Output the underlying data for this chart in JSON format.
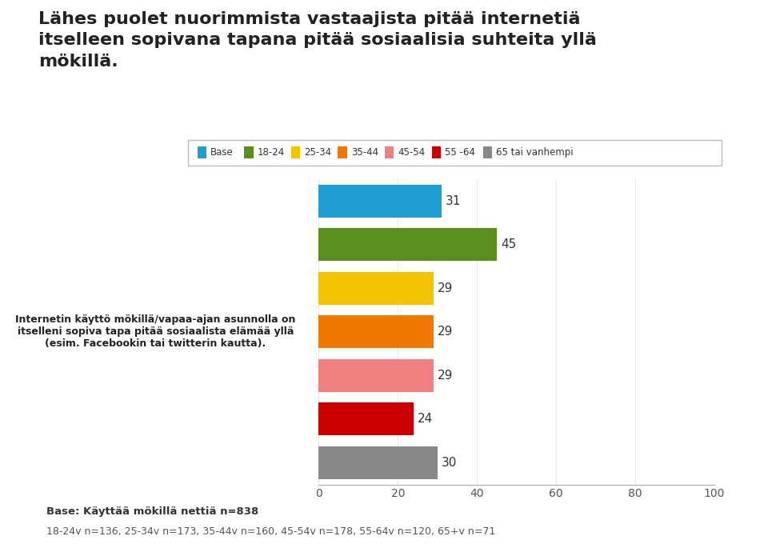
{
  "title": "Lähes puolet nuorimmista vastaajista pitää internetiä\nitselleen sopivana tapana pitää sosiaalisia suhteita yllä\nmökillä.",
  "legend_labels": [
    "Base",
    "18-24",
    "25-34",
    "35-44",
    "45-54",
    "55 -64",
    "65 tai vanhempi"
  ],
  "legend_colors": [
    "#1f9ed1",
    "#5a8f1e",
    "#f5c400",
    "#f07800",
    "#f08080",
    "#cc0000",
    "#888888"
  ],
  "categories": [
    "Base",
    "18-24",
    "25-34",
    "35-44",
    "45-54",
    "55-64",
    "65 tai vanhempi"
  ],
  "values": [
    31,
    45,
    29,
    29,
    29,
    24,
    30
  ],
  "bar_colors": [
    "#1f9ed1",
    "#5a8f1e",
    "#f5c400",
    "#f07800",
    "#f08080",
    "#cc0000",
    "#888888"
  ],
  "ylabel_text": "Internetin käyttö mökillä/vapaa-ajan asunnolla on\nitselleni sopiva tapa pitää sosiaalista elämää yllä\n(esim. Facebookin tai twitterin kautta).",
  "xlim": [
    0,
    100
  ],
  "xticks": [
    0,
    20,
    40,
    60,
    80,
    100
  ],
  "footnote1": "Base: Käyttää mökillä nettiä n=838",
  "footnote2": "18-24v n=136, 25-34v n=173, 35-44v n=160, 45-54v n=178, 55-64v n=120, 65+v n=71",
  "background_color": "#ffffff",
  "bar_height": 0.75,
  "value_fontsize": 11,
  "label_fontsize": 9,
  "title_fontsize": 16,
  "footnote_fontsize": 9.5
}
